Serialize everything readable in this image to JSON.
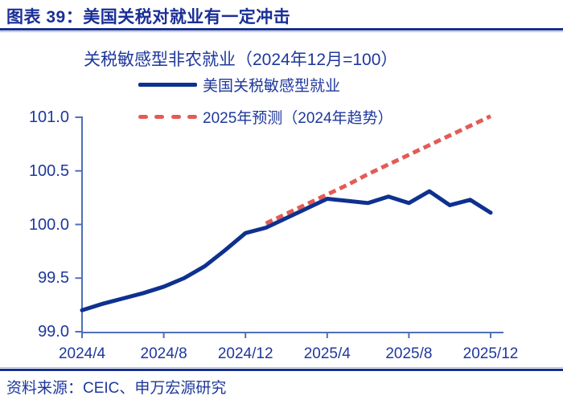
{
  "header": {
    "title": "图表 39：美国关税对就业有一定冲击"
  },
  "footer": {
    "source": "资料来源：CEIC、申万宏源研究"
  },
  "colors": {
    "heading_navy": "#1a2f97",
    "text_navy": "#1e389c",
    "actual_line_blue": "#0e3190",
    "forecast_red": "#e25c57",
    "axis_blue": "#4f6fb8",
    "divider_navy": "#152e8f"
  },
  "chart_data": {
    "type": "line",
    "title": "关税敏感型非农就业（2024年12月=100）",
    "grid": "off",
    "legend_position": "top-left",
    "ylim": [
      99.0,
      101.0
    ],
    "y_ticks": [
      101.0,
      100.5,
      100.0,
      99.5,
      99.0
    ],
    "x_labels": [
      "2024/4",
      "2024/5",
      "2024/6",
      "2024/7",
      "2024/8",
      "2024/9",
      "2024/10",
      "2024/11",
      "2024/12",
      "2025/1",
      "2025/2",
      "2025/3",
      "2025/4",
      "2025/5",
      "2025/6",
      "2025/7",
      "2025/8",
      "2025/9",
      "2025/10",
      "2025/11",
      "2025/12"
    ],
    "x_ticks": [
      {
        "label": "2024/4",
        "month_index": 0
      },
      {
        "label": "2024/8",
        "month_index": 4
      },
      {
        "label": "2024/12",
        "month_index": 8
      },
      {
        "label": "2025/4",
        "month_index": 12
      },
      {
        "label": "2025/8",
        "month_index": 16
      },
      {
        "label": "2025/12",
        "month_index": 20
      }
    ],
    "series": [
      {
        "name": "美国关税敏感型就业",
        "style": "solid",
        "color": "#0e3190",
        "start_index": 0,
        "x": [
          "2024/4",
          "2024/5",
          "2024/6",
          "2024/7",
          "2024/8",
          "2024/9",
          "2024/10",
          "2024/11",
          "2024/12",
          "2025/1",
          "2025/2",
          "2025/3",
          "2025/4",
          "2025/5",
          "2025/6",
          "2025/7",
          "2025/8",
          "2025/9",
          "2025/10",
          "2025/11",
          "2025/12"
        ],
        "values": [
          99.2,
          99.26,
          99.31,
          99.36,
          99.42,
          99.5,
          99.61,
          99.76,
          99.92,
          99.97,
          100.06,
          100.15,
          100.24,
          100.22,
          100.2,
          100.26,
          100.2,
          100.31,
          100.18,
          100.23,
          100.11
        ]
      },
      {
        "name": "2025年预测（2024年趋势）",
        "style": "dashed",
        "color": "#e25c57",
        "start_index": 9,
        "x": [
          "2025/1",
          "2025/2",
          "2025/3",
          "2025/4",
          "2025/5",
          "2025/6",
          "2025/7",
          "2025/8",
          "2025/9",
          "2025/10",
          "2025/11",
          "2025/12"
        ],
        "values": [
          100.01,
          100.1,
          100.19,
          100.28,
          100.37,
          100.47,
          100.56,
          100.65,
          100.74,
          100.83,
          100.92,
          101.01
        ]
      }
    ]
  }
}
